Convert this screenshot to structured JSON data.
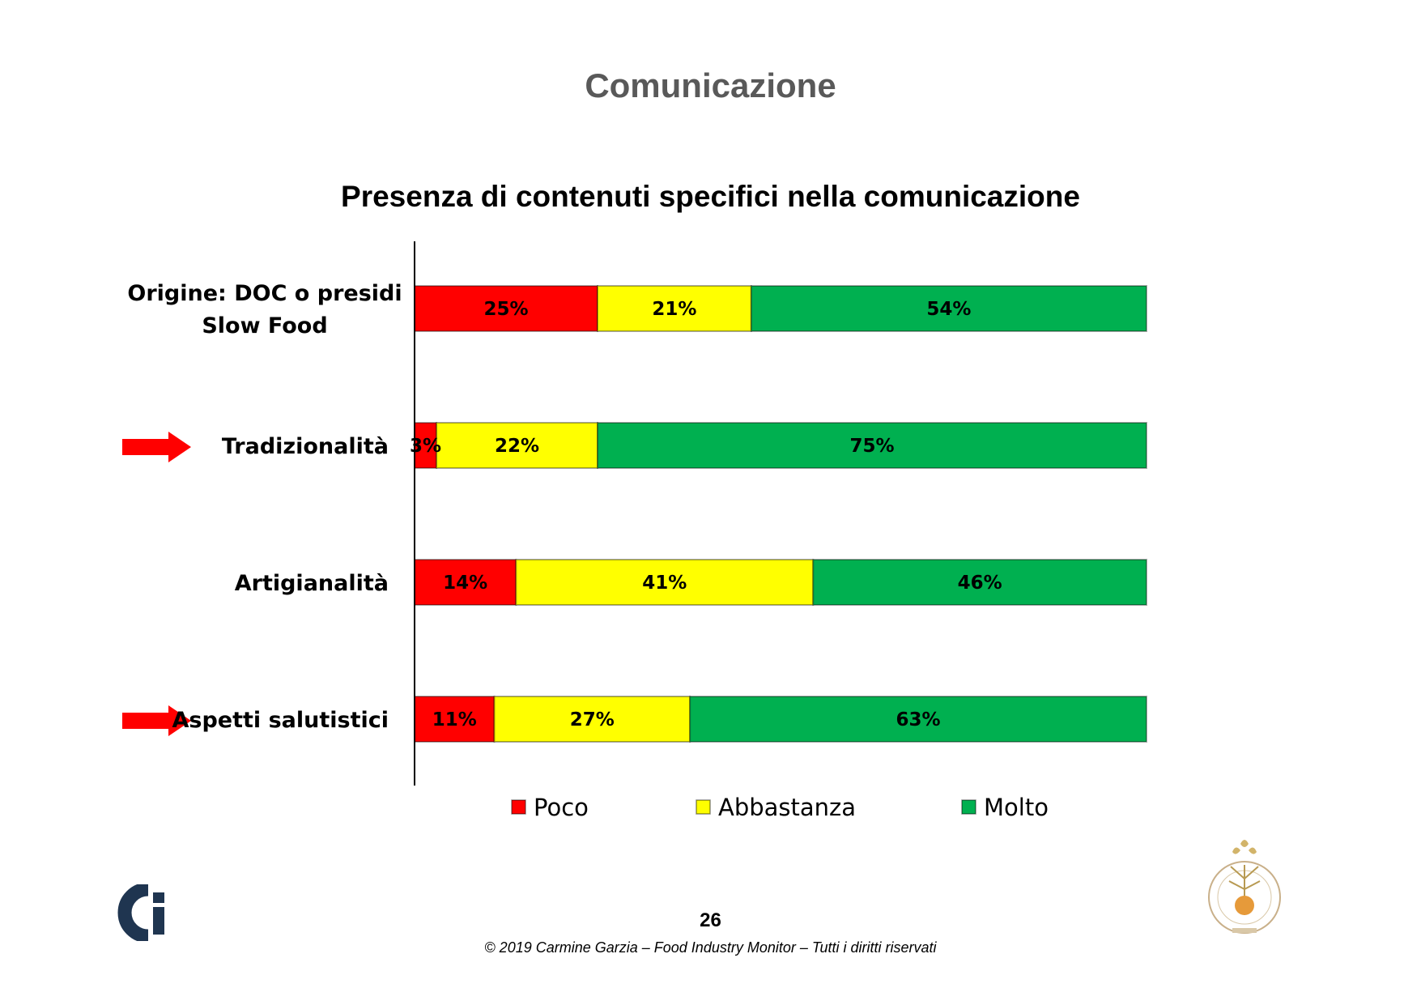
{
  "slide_title": "Comunicazione",
  "chart_data": {
    "type": "bar",
    "orientation": "horizontal",
    "stacked": true,
    "percent": true,
    "title": "Presenza di contenuti specifici nella comunicazione",
    "categories": [
      [
        "Origine: DOC o presidi",
        "Slow Food"
      ],
      [
        "Tradizionalità"
      ],
      [
        "Artigianalità"
      ],
      [
        "Aspetti salutistici"
      ]
    ],
    "highlighted": [
      false,
      true,
      false,
      true
    ],
    "series": [
      {
        "name": "Poco",
        "color": "#ff0000",
        "values": [
          25,
          3,
          14,
          11
        ]
      },
      {
        "name": "Abbastanza",
        "color": "#ffff00",
        "values": [
          21,
          22,
          41,
          27
        ]
      },
      {
        "name": "Molto",
        "color": "#00b050",
        "values": [
          54,
          75,
          46,
          63
        ]
      }
    ],
    "xlim": [
      0,
      100
    ],
    "grid": false,
    "legend": "bottom",
    "annotation_color": "#ff0000"
  },
  "footer": {
    "page_number": "26",
    "copyright": "© 2019 Carmine Garzia – Food Industry Monitor – Tutti i diritti riservati"
  },
  "logo_icon": "ci-logo-icon",
  "seal_icon": "university-seal-icon"
}
